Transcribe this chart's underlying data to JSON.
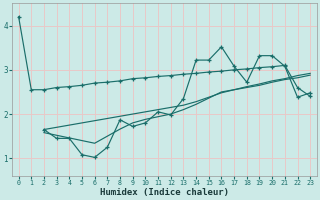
{
  "xlabel": "Humidex (Indice chaleur)",
  "bg_color": "#cceae7",
  "grid_color": "#e8c8c8",
  "line_color": "#1a6e6a",
  "xlim": [
    -0.5,
    23.5
  ],
  "ylim": [
    0.6,
    4.5
  ],
  "yticks": [
    1,
    2,
    3,
    4
  ],
  "xticks": [
    0,
    1,
    2,
    3,
    4,
    5,
    6,
    7,
    8,
    9,
    10,
    11,
    12,
    13,
    14,
    15,
    16,
    17,
    18,
    19,
    20,
    21,
    22,
    23
  ],
  "line1_x": [
    0,
    1,
    2,
    3,
    4,
    5,
    6,
    7,
    8,
    9,
    10,
    11,
    12,
    13,
    14,
    15,
    16,
    17,
    18,
    19,
    20,
    21,
    22,
    23
  ],
  "line1_y": [
    4.2,
    2.55,
    2.55,
    2.6,
    2.62,
    2.65,
    2.7,
    2.72,
    2.75,
    2.8,
    2.82,
    2.85,
    2.87,
    2.9,
    2.92,
    2.95,
    2.97,
    3.0,
    3.02,
    3.05,
    3.07,
    3.1,
    2.6,
    2.4
  ],
  "line2_x": [
    2,
    3,
    4,
    5,
    6,
    7,
    8,
    9,
    10,
    11,
    12,
    13,
    14,
    15,
    16,
    17,
    18,
    19,
    20,
    21,
    22,
    23
  ],
  "line2_y": [
    1.65,
    1.45,
    1.45,
    1.08,
    1.02,
    1.25,
    1.87,
    1.72,
    1.8,
    2.05,
    1.98,
    2.35,
    3.22,
    3.22,
    3.52,
    3.08,
    2.72,
    3.32,
    3.32,
    3.08,
    2.38,
    2.48
  ],
  "line3_x": [
    2,
    3,
    4,
    5,
    6,
    7,
    8,
    9,
    10,
    11,
    12,
    13,
    14,
    15,
    16,
    17,
    18,
    19,
    20,
    21,
    22,
    23
  ],
  "line3_y": [
    1.65,
    1.7,
    1.75,
    1.8,
    1.85,
    1.9,
    1.95,
    2.0,
    2.05,
    2.1,
    2.15,
    2.2,
    2.28,
    2.38,
    2.48,
    2.55,
    2.62,
    2.68,
    2.75,
    2.8,
    2.87,
    2.92
  ],
  "line4_x": [
    2,
    3,
    4,
    5,
    6,
    7,
    8,
    9,
    10,
    11,
    12,
    13,
    14,
    15,
    16,
    17,
    18,
    19,
    20,
    21,
    22,
    23
  ],
  "line4_y": [
    1.58,
    1.52,
    1.46,
    1.4,
    1.34,
    1.5,
    1.66,
    1.8,
    1.88,
    1.94,
    2.0,
    2.1,
    2.22,
    2.36,
    2.5,
    2.55,
    2.6,
    2.65,
    2.72,
    2.78,
    2.82,
    2.88
  ]
}
